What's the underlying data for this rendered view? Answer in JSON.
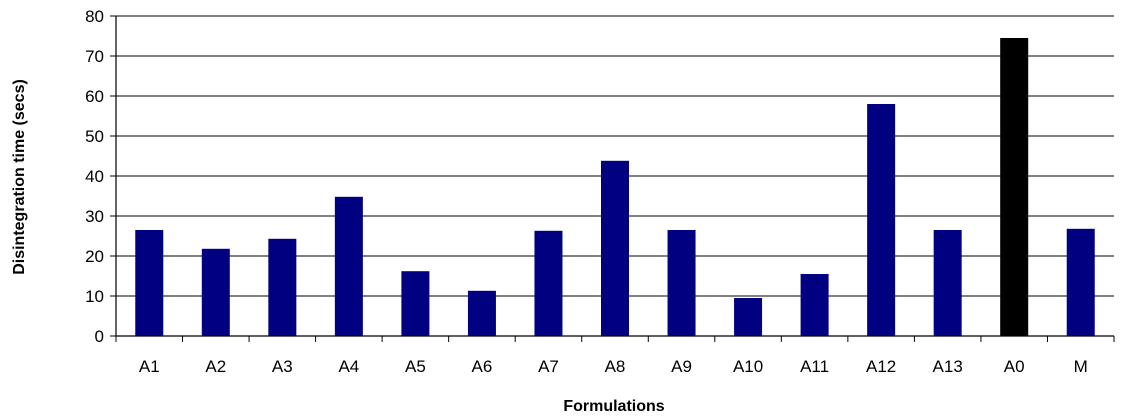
{
  "chart_data": {
    "type": "bar",
    "title": "",
    "xlabel": "Formulations",
    "ylabel": "Disintegration time (secs)",
    "categories": [
      "A1",
      "A2",
      "A3",
      "A4",
      "A5",
      "A6",
      "A7",
      "A8",
      "A9",
      "A10",
      "A11",
      "A12",
      "A13",
      "A0",
      "M"
    ],
    "values": [
      26.5,
      21.8,
      24.3,
      34.8,
      16.2,
      11.3,
      26.3,
      43.8,
      26.5,
      9.5,
      15.5,
      58.0,
      26.5,
      74.5,
      26.8
    ],
    "yticks": [
      0,
      10,
      20,
      30,
      40,
      50,
      60,
      70,
      80
    ],
    "ylim": [
      0,
      80
    ],
    "grid": true,
    "legend": "none",
    "colors": {
      "bar": "#000080",
      "highlight_bar": "#000000",
      "highlight_category": "A0",
      "grid": "#000000",
      "axis": "#000000"
    }
  }
}
